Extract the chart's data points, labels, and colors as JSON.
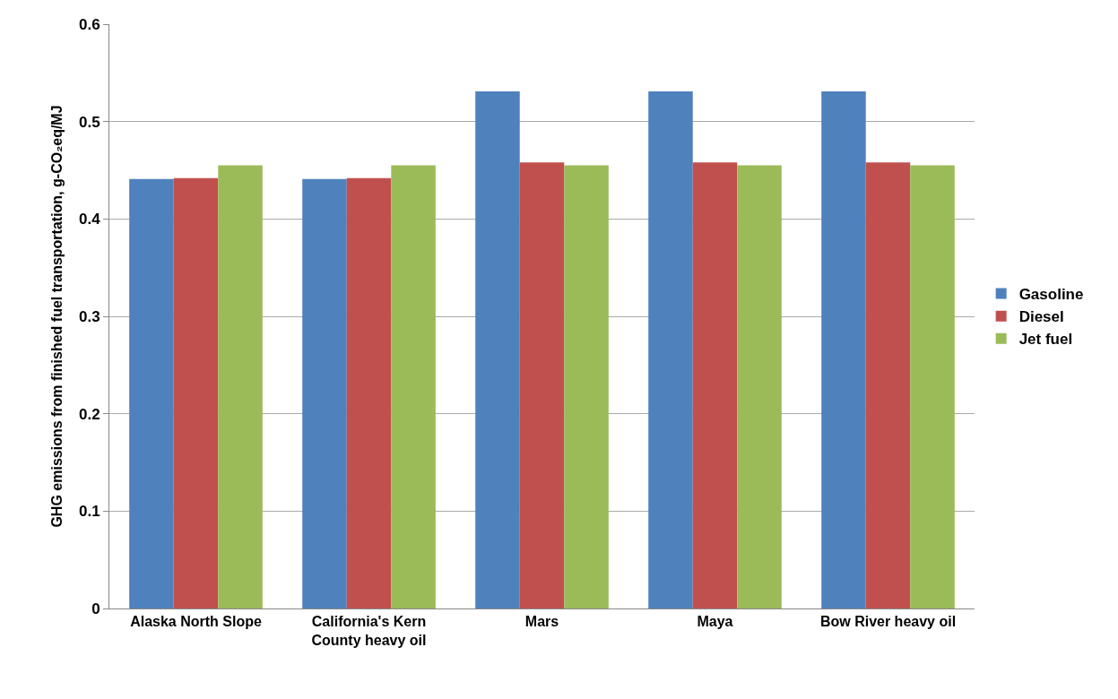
{
  "chart_data": {
    "type": "bar",
    "ylabel": "GHG emissions from finished fuel transportation, g-CO₂eq/MJ",
    "categories": [
      "Alaska North Slope",
      "California's Kern County heavy oil",
      "Mars",
      "Maya",
      "Bow River heavy oil"
    ],
    "series": [
      {
        "name": "Gasoline",
        "color": "#4f81bd",
        "values": [
          0.441,
          0.441,
          0.531,
          0.531,
          0.531
        ]
      },
      {
        "name": "Diesel",
        "color": "#c0504d",
        "values": [
          0.442,
          0.442,
          0.458,
          0.458,
          0.458
        ]
      },
      {
        "name": "Jet fuel",
        "color": "#9bbb59",
        "values": [
          0.455,
          0.455,
          0.455,
          0.455,
          0.455
        ]
      }
    ],
    "ylim": [
      0,
      0.6
    ],
    "yticks": [
      0,
      0.1,
      0.2,
      0.3,
      0.4,
      0.5,
      0.6
    ],
    "grid": "y",
    "legend": "right"
  }
}
